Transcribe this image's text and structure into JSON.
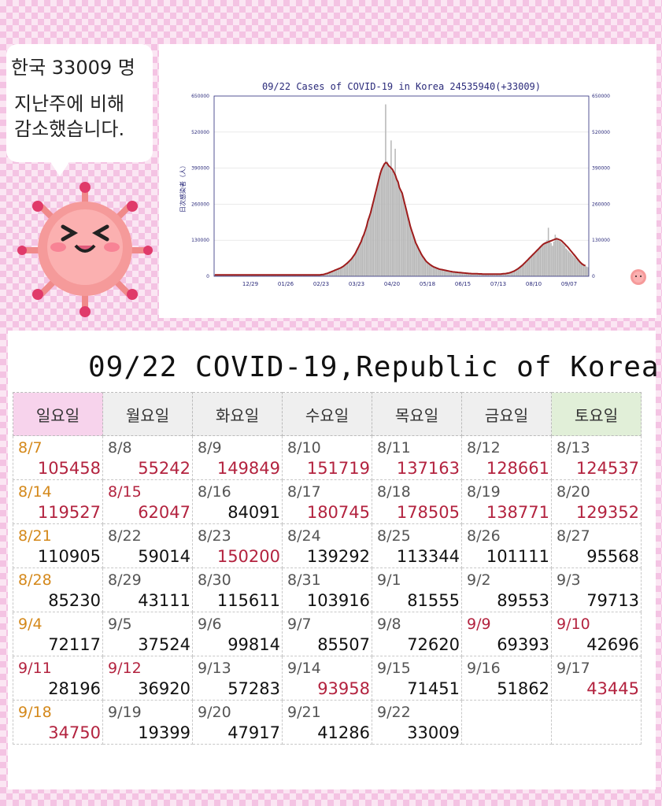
{
  "bubble": {
    "title": "한국 33009 명",
    "line1": "지난주에 비해",
    "line2": "감소했습니다."
  },
  "chart_data": {
    "type": "bar",
    "title": "09/22 Cases of COVID-19 in Korea 24535940(+33009)",
    "ylabel": "日次感染者（人）",
    "ylim": [
      0,
      650000
    ],
    "yticks": [
      "0",
      "130000",
      "260000",
      "390000",
      "520000",
      "650000"
    ],
    "xtick_labels": [
      "12/29",
      "01/26",
      "02/23",
      "03/23",
      "04/20",
      "05/18",
      "06/15",
      "07/13",
      "08/10",
      "09/07"
    ],
    "colors": {
      "bars": "#b8b8b8",
      "line": "#9e1c1c",
      "axis_text": "#2a2a7a"
    },
    "daily_values": [
      5000,
      5000,
      5000,
      5000,
      5000,
      5000,
      5000,
      5000,
      5000,
      5000,
      5000,
      5000,
      5000,
      5000,
      5000,
      5000,
      5000,
      5000,
      5000,
      5000,
      5000,
      5000,
      5000,
      5000,
      5000,
      5000,
      5000,
      5000,
      5000,
      5000,
      5000,
      5000,
      5000,
      5000,
      5000,
      5000,
      5000,
      5000,
      5000,
      5000,
      5000,
      5000,
      5000,
      5000,
      5000,
      5000,
      5000,
      5000,
      5000,
      5000,
      5000,
      5000,
      5000,
      5000,
      5000,
      5000,
      5000,
      5000,
      5000,
      5000,
      5000,
      5000,
      5000,
      5000,
      5000,
      5000,
      5000,
      5000,
      5000,
      5000,
      5000,
      5000,
      5000,
      5000,
      5000,
      5000,
      5000,
      5000,
      6000,
      6000,
      7000,
      9000,
      10000,
      12000,
      14000,
      16000,
      18000,
      20000,
      22000,
      24000,
      26000,
      28000,
      30000,
      33000,
      36000,
      40000,
      44000,
      48000,
      53000,
      58000,
      63000,
      70000,
      77000,
      85000,
      95000,
      105000,
      115000,
      125000,
      140000,
      150000,
      165000,
      180000,
      200000,
      215000,
      230000,
      250000,
      270000,
      290000,
      310000,
      330000,
      350000,
      370000,
      385000,
      395000,
      405000,
      620000,
      415000,
      400000,
      390000,
      490000,
      380000,
      370000,
      460000,
      350000,
      340000,
      320000,
      310000,
      300000,
      280000,
      260000,
      240000,
      220000,
      200000,
      180000,
      165000,
      150000,
      135000,
      120000,
      110000,
      100000,
      90000,
      80000,
      72000,
      65000,
      58000,
      52000,
      48000,
      44000,
      40000,
      37000,
      34000,
      32000,
      30000,
      28000,
      26000,
      25000,
      24000,
      23000,
      22000,
      21000,
      20000,
      19000,
      18000,
      17000,
      16000,
      15500,
      15000,
      14500,
      14000,
      13500,
      13000,
      12500,
      12000,
      11500,
      11000,
      10500,
      10000,
      10000,
      9500,
      9500,
      9000,
      9000,
      9000,
      8500,
      8500,
      8500,
      8000,
      8000,
      8000,
      8000,
      8000,
      8000,
      8000,
      8000,
      8000,
      8000,
      8000,
      8000,
      8000,
      8000,
      8500,
      9000,
      9500,
      10000,
      11000,
      12000,
      13000,
      15000,
      17000,
      19000,
      22000,
      25000,
      28000,
      32000,
      36000,
      40000,
      45000,
      50000,
      55000,
      60000,
      65000,
      70000,
      75000,
      80000,
      85000,
      90000,
      95000,
      100000,
      105000,
      110000,
      115000,
      120000,
      125000,
      130000,
      175000,
      130000,
      120000,
      110000,
      125000,
      150000,
      140000,
      130000,
      128000,
      125000,
      120000,
      115000,
      110000,
      100000,
      95000,
      90000,
      85000,
      80000,
      75000,
      70000,
      65000,
      60000,
      55000,
      50000,
      45000,
      42000,
      40000,
      38000,
      35000,
      33000
    ],
    "moving_average": [
      5000,
      5000,
      5000,
      5000,
      5000,
      5000,
      5000,
      5000,
      5000,
      5000,
      5000,
      5000,
      5000,
      5000,
      5000,
      5000,
      5000,
      5000,
      5000,
      5000,
      5000,
      5000,
      5000,
      5000,
      5000,
      5000,
      5000,
      5000,
      5000,
      5000,
      5000,
      5000,
      5000,
      5000,
      5000,
      5000,
      5000,
      5000,
      5000,
      5000,
      5000,
      5000,
      5000,
      5000,
      5000,
      5000,
      5000,
      5000,
      5000,
      5000,
      5000,
      5000,
      5000,
      5000,
      5000,
      5000,
      5000,
      5000,
      5000,
      5000,
      5000,
      5000,
      5000,
      5000,
      5000,
      5000,
      5000,
      5000,
      5000,
      5000,
      5000,
      5000,
      5000,
      5000,
      5000,
      5000,
      5000,
      5000,
      6000,
      6000,
      7000,
      9000,
      10000,
      12000,
      14000,
      16000,
      18000,
      20000,
      22000,
      24000,
      26000,
      28000,
      30000,
      33000,
      36000,
      40000,
      44000,
      48000,
      53000,
      58000,
      63000,
      70000,
      77000,
      85000,
      95000,
      105000,
      115000,
      125000,
      140000,
      150000,
      165000,
      180000,
      200000,
      215000,
      230000,
      250000,
      270000,
      290000,
      310000,
      330000,
      350000,
      370000,
      385000,
      395000,
      405000,
      410000,
      408000,
      400000,
      395000,
      390000,
      385000,
      375000,
      365000,
      350000,
      340000,
      320000,
      310000,
      300000,
      280000,
      260000,
      240000,
      220000,
      200000,
      180000,
      165000,
      150000,
      135000,
      120000,
      110000,
      100000,
      90000,
      80000,
      72000,
      65000,
      58000,
      52000,
      48000,
      44000,
      40000,
      37000,
      34000,
      32000,
      30000,
      28000,
      26000,
      25000,
      24000,
      23000,
      22000,
      21000,
      20000,
      19000,
      18000,
      17000,
      16000,
      15500,
      15000,
      14500,
      14000,
      13500,
      13000,
      12500,
      12000,
      11500,
      11000,
      10500,
      10000,
      10000,
      9500,
      9500,
      9000,
      9000,
      9000,
      8500,
      8500,
      8500,
      8000,
      8000,
      8000,
      8000,
      8000,
      8000,
      8000,
      8000,
      8000,
      8000,
      8000,
      8000,
      8000,
      8000,
      8500,
      9000,
      9500,
      10000,
      11000,
      12000,
      13000,
      15000,
      17000,
      19000,
      22000,
      25000,
      28000,
      32000,
      36000,
      40000,
      45000,
      50000,
      55000,
      60000,
      65000,
      70000,
      75000,
      80000,
      85000,
      90000,
      95000,
      100000,
      105000,
      110000,
      115000,
      118000,
      120000,
      122000,
      124000,
      126000,
      128000,
      130000,
      132000,
      134000,
      135000,
      134000,
      132000,
      130000,
      126000,
      121000,
      116000,
      111000,
      106000,
      100000,
      94000,
      88000,
      82000,
      76000,
      70000,
      64000,
      58000,
      52000,
      47000,
      43000,
      40000,
      38000
    ]
  },
  "table": {
    "title": "09/22 COVID-19,Republic of Korea",
    "headers": [
      "일요일",
      "월요일",
      "화요일",
      "수요일",
      "목요일",
      "금요일",
      "토요일"
    ],
    "weeks": [
      [
        {
          "date": "8/7",
          "value": "105458"
        },
        {
          "date": "8/8",
          "value": "55242"
        },
        {
          "date": "8/9",
          "value": "149849"
        },
        {
          "date": "8/10",
          "value": "151719"
        },
        {
          "date": "8/11",
          "value": "137163"
        },
        {
          "date": "8/12",
          "value": "128661"
        },
        {
          "date": "8/13",
          "value": "124537"
        }
      ],
      [
        {
          "date": "8/14",
          "value": "119527"
        },
        {
          "date": "8/15",
          "value": "62047"
        },
        {
          "date": "8/16",
          "value": "84091"
        },
        {
          "date": "8/17",
          "value": "180745"
        },
        {
          "date": "8/18",
          "value": "178505"
        },
        {
          "date": "8/19",
          "value": "138771"
        },
        {
          "date": "8/20",
          "value": "129352"
        }
      ],
      [
        {
          "date": "8/21",
          "value": "110905"
        },
        {
          "date": "8/22",
          "value": "59014"
        },
        {
          "date": "8/23",
          "value": "150200"
        },
        {
          "date": "8/24",
          "value": "139292"
        },
        {
          "date": "8/25",
          "value": "113344"
        },
        {
          "date": "8/26",
          "value": "101111"
        },
        {
          "date": "8/27",
          "value": "95568"
        }
      ],
      [
        {
          "date": "8/28",
          "value": "85230"
        },
        {
          "date": "8/29",
          "value": "43111"
        },
        {
          "date": "8/30",
          "value": "115611"
        },
        {
          "date": "8/31",
          "value": "103916"
        },
        {
          "date": "9/1",
          "value": "81555"
        },
        {
          "date": "9/2",
          "value": "89553"
        },
        {
          "date": "9/3",
          "value": "79713"
        }
      ],
      [
        {
          "date": "9/4",
          "value": "72117"
        },
        {
          "date": "9/5",
          "value": "37524"
        },
        {
          "date": "9/6",
          "value": "99814"
        },
        {
          "date": "9/7",
          "value": "85507"
        },
        {
          "date": "9/8",
          "value": "72620"
        },
        {
          "date": "9/9",
          "value": "69393"
        },
        {
          "date": "9/10",
          "value": "42696"
        }
      ],
      [
        {
          "date": "9/11",
          "value": "28196"
        },
        {
          "date": "9/12",
          "value": "36920"
        },
        {
          "date": "9/13",
          "value": "57283"
        },
        {
          "date": "9/14",
          "value": "93958"
        },
        {
          "date": "9/15",
          "value": "71451"
        },
        {
          "date": "9/16",
          "value": "51862"
        },
        {
          "date": "9/17",
          "value": "43445"
        }
      ],
      [
        {
          "date": "9/18",
          "value": "34750"
        },
        {
          "date": "9/19",
          "value": "19399"
        },
        {
          "date": "9/20",
          "value": "47917"
        },
        {
          "date": "9/21",
          "value": "41286"
        },
        {
          "date": "9/22",
          "value": "33009"
        },
        {
          "date": "",
          "value": ""
        },
        {
          "date": "",
          "value": ""
        }
      ]
    ],
    "date_colors": [
      [
        "orange",
        "gray",
        "gray",
        "gray",
        "gray",
        "gray",
        "gray"
      ],
      [
        "orange",
        "red",
        "gray",
        "gray",
        "gray",
        "gray",
        "gray"
      ],
      [
        "orange",
        "gray",
        "gray",
        "gray",
        "gray",
        "gray",
        "gray"
      ],
      [
        "orange",
        "gray",
        "gray",
        "gray",
        "gray",
        "gray",
        "gray"
      ],
      [
        "orange",
        "gray",
        "gray",
        "gray",
        "gray",
        "red",
        "red"
      ],
      [
        "red",
        "red",
        "gray",
        "gray",
        "gray",
        "gray",
        "gray"
      ],
      [
        "orange",
        "gray",
        "gray",
        "gray",
        "gray",
        "gray",
        "gray"
      ]
    ],
    "value_colors": [
      [
        "red",
        "red",
        "red",
        "red",
        "red",
        "red",
        "red"
      ],
      [
        "red",
        "red",
        "black",
        "red",
        "red",
        "red",
        "red"
      ],
      [
        "black",
        "black",
        "red",
        "black",
        "black",
        "black",
        "black"
      ],
      [
        "black",
        "black",
        "black",
        "black",
        "black",
        "black",
        "black"
      ],
      [
        "black",
        "black",
        "black",
        "black",
        "black",
        "black",
        "black"
      ],
      [
        "black",
        "black",
        "black",
        "red",
        "black",
        "black",
        "red"
      ],
      [
        "red",
        "black",
        "black",
        "black",
        "black",
        "black",
        "black"
      ]
    ]
  }
}
